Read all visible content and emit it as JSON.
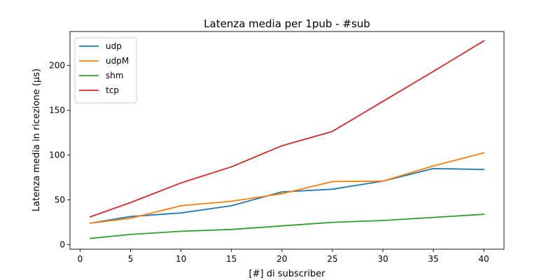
{
  "chart_data": {
    "type": "line",
    "title": "Latenza media per 1pub - #sub",
    "xlabel": "[#] di subscriber",
    "ylabel": "Latenza media in ricezione (µs)",
    "xlim": [
      -1,
      42
    ],
    "ylim": [
      -5,
      238
    ],
    "xticks": [
      0,
      5,
      10,
      15,
      20,
      25,
      30,
      35,
      40
    ],
    "yticks": [
      0,
      50,
      100,
      150,
      200
    ],
    "x": [
      1,
      5,
      10,
      15,
      20,
      25,
      30,
      35,
      40
    ],
    "series": [
      {
        "name": "udp",
        "color": "#1f77b4",
        "values": [
          24,
          31.5,
          35.5,
          43.5,
          59,
          62,
          71,
          85,
          84
        ]
      },
      {
        "name": "udpM",
        "color": "#ff7f0e",
        "values": [
          24,
          29.5,
          43.5,
          48.5,
          57,
          70.5,
          71,
          88,
          102.5
        ]
      },
      {
        "name": "shm",
        "color": "#2ca02c",
        "values": [
          7,
          11.5,
          15,
          17,
          21,
          25,
          27,
          30.5,
          34
        ]
      },
      {
        "name": "tcp",
        "color": "#d62728",
        "values": [
          31,
          47,
          69,
          87,
          110.5,
          126.5,
          160,
          193.5,
          227.5
        ]
      }
    ],
    "legend_position": "top-left",
    "grid": false
  }
}
